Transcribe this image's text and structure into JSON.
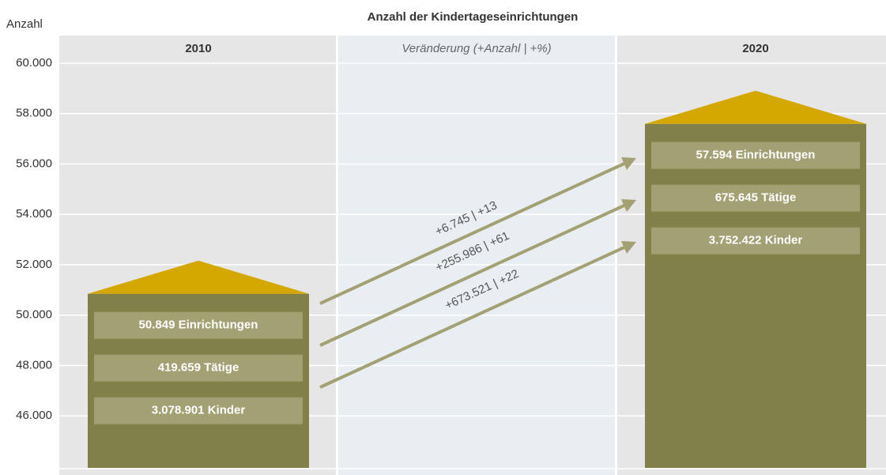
{
  "chart_data": {
    "type": "bar",
    "title": "Anzahl der Kindertageseinrichtungen",
    "y_label": "Anzahl",
    "categories": [
      "2010",
      "2020"
    ],
    "values": [
      50849,
      57594
    ],
    "value_labels": [
      "50.849 Einrichtungen",
      "57.594 Einrichtungen"
    ],
    "details": [
      [
        "419.659 Tätige",
        "3.078.901 Kinder"
      ],
      [
        "675.645 Tätige",
        "3.752.422 Kinder"
      ]
    ],
    "change_header": "Veränderung (+Anzahl | +%)",
    "changes": [
      "+6.745 | +13",
      "+255.986 | +61",
      "+673.521 | +22"
    ],
    "color": "#808048",
    "roof_color": "#d4a800",
    "ylim": [
      44000,
      60000
    ],
    "yticks": [
      {
        "value": 46000,
        "label": "46.000"
      },
      {
        "value": 48000,
        "label": "48.000"
      },
      {
        "value": 50000,
        "label": "50.000"
      },
      {
        "value": 52000,
        "label": "52.000"
      },
      {
        "value": 54000,
        "label": "54.000"
      },
      {
        "value": 56000,
        "label": "56.000"
      },
      {
        "value": 58000,
        "label": "58.000"
      },
      {
        "value": 60000,
        "label": "60.000"
      }
    ],
    "grid": true
  }
}
